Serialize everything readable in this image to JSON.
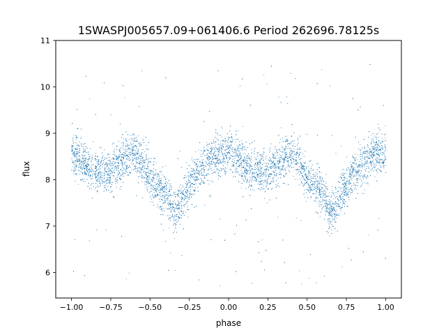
{
  "chart_data": {
    "type": "scatter",
    "title": "1SWASPJ005657.09+061406.6 Period 262696.78125s",
    "xlabel": "phase",
    "ylabel": "flux",
    "xlim": [
      -1.1,
      1.1
    ],
    "ylim": [
      5.45,
      11.0
    ],
    "xticks": [
      -1.0,
      -0.75,
      -0.5,
      -0.25,
      0.0,
      0.25,
      0.5,
      0.75,
      1.0
    ],
    "xtick_labels": [
      "−1.00",
      "−0.75",
      "−0.50",
      "−0.25",
      "0.00",
      "0.25",
      "0.50",
      "0.75",
      "1.00"
    ],
    "yticks": [
      6,
      7,
      8,
      9,
      10,
      11
    ],
    "ytick_labels": [
      "6",
      "7",
      "8",
      "9",
      "10",
      "11"
    ],
    "grid": false,
    "legend": "none",
    "point_color": "#1f77b4",
    "phase_curve": {
      "x": [
        0.0,
        0.05,
        0.1,
        0.15,
        0.2,
        0.25,
        0.3,
        0.35,
        0.4,
        0.45,
        0.5,
        0.55,
        0.6,
        0.65,
        0.7,
        0.75,
        0.8,
        0.85,
        0.9,
        0.95,
        1.0
      ],
      "y": [
        8.55,
        8.45,
        8.3,
        8.2,
        8.15,
        8.2,
        8.35,
        8.5,
        8.6,
        8.35,
        8.0,
        7.85,
        7.7,
        7.3,
        7.55,
        7.9,
        8.15,
        8.35,
        8.5,
        8.6,
        8.55
      ],
      "scatter_sd": 0.22,
      "outlier_range": [
        5.7,
        10.5
      ]
    }
  }
}
